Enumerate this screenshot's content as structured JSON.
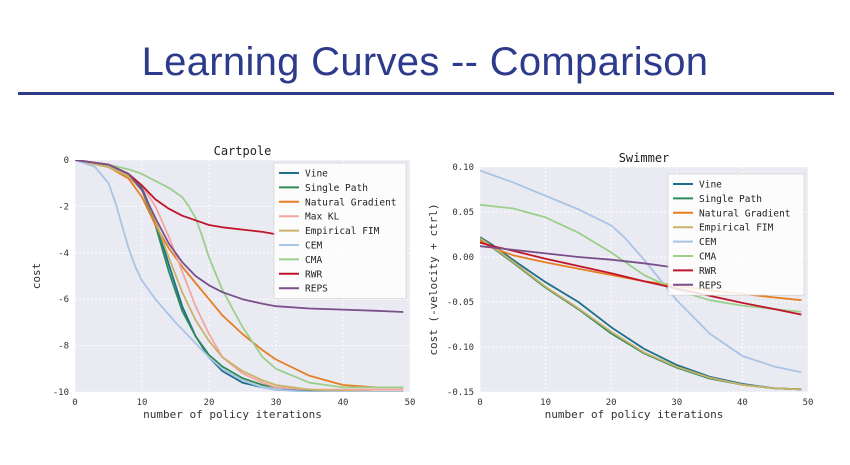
{
  "slide": {
    "title": "Learning Curves -- Comparison"
  },
  "chart_data": [
    {
      "type": "line",
      "title": "Cartpole",
      "xlabel": "number of policy iterations",
      "ylabel": "cost",
      "xlim": [
        0,
        50
      ],
      "ylim": [
        -10,
        0
      ],
      "xticks": [
        0,
        10,
        20,
        30,
        40,
        50
      ],
      "yticks": [
        0,
        -2,
        -4,
        -6,
        -8,
        -10
      ],
      "grid": true,
      "legend": "top-right",
      "series": [
        {
          "name": "Vine",
          "color": "#1f6f8b",
          "x": [
            0,
            5,
            8,
            10,
            12,
            14,
            16,
            18,
            20,
            22,
            25,
            28,
            30,
            35,
            40,
            45,
            49
          ],
          "y": [
            0,
            -0.2,
            -0.6,
            -1.2,
            -2.6,
            -4.5,
            -6.3,
            -7.6,
            -8.5,
            -9.1,
            -9.6,
            -9.8,
            -9.9,
            -9.95,
            -10,
            -10,
            -10
          ]
        },
        {
          "name": "Single Path",
          "color": "#2e8b57",
          "x": [
            0,
            5,
            8,
            10,
            12,
            14,
            16,
            18,
            20,
            22,
            25,
            28,
            30,
            35,
            40,
            45,
            49
          ],
          "y": [
            0,
            -0.3,
            -0.7,
            -1.3,
            -2.8,
            -4.8,
            -6.5,
            -7.6,
            -8.4,
            -8.9,
            -9.4,
            -9.7,
            -9.8,
            -9.9,
            -9.95,
            -10,
            -10
          ]
        },
        {
          "name": "Natural Gradient",
          "color": "#e67e22",
          "x": [
            0,
            5,
            8,
            10,
            12,
            14,
            16,
            18,
            20,
            22,
            25,
            28,
            30,
            35,
            40,
            45,
            49
          ],
          "y": [
            0,
            -0.3,
            -0.8,
            -1.6,
            -2.8,
            -3.8,
            -4.6,
            -5.3,
            -6.0,
            -6.7,
            -7.5,
            -8.2,
            -8.6,
            -9.3,
            -9.7,
            -9.8,
            -9.8
          ]
        },
        {
          "name": "Max KL",
          "color": "#f4a6a0",
          "x": [
            0,
            5,
            8,
            10,
            12,
            14,
            16,
            18,
            20,
            22,
            25,
            28,
            30,
            35,
            40,
            45,
            49
          ],
          "y": [
            0,
            -0.2,
            -0.6,
            -1.1,
            -2.0,
            -3.3,
            -4.8,
            -6.3,
            -7.5,
            -8.5,
            -9.2,
            -9.6,
            -9.8,
            -9.9,
            -9.9,
            -9.9,
            -9.9
          ]
        },
        {
          "name": "Empirical FIM",
          "color": "#c9b36a",
          "x": [
            0,
            5,
            8,
            10,
            12,
            14,
            16,
            18,
            20,
            22,
            25,
            28,
            30,
            35,
            40,
            45,
            49
          ],
          "y": [
            0,
            -0.3,
            -0.7,
            -1.3,
            -2.6,
            -4.2,
            -5.7,
            -6.9,
            -7.8,
            -8.5,
            -9.1,
            -9.5,
            -9.7,
            -9.9,
            -9.95,
            -10,
            -10
          ]
        },
        {
          "name": "CEM",
          "color": "#a9c4e4",
          "x": [
            0,
            3,
            5,
            6,
            7,
            8,
            9,
            10,
            12,
            15,
            18,
            20,
            22,
            25,
            28,
            30,
            35,
            40,
            45,
            49
          ],
          "y": [
            0,
            -0.3,
            -1.0,
            -1.8,
            -2.8,
            -3.8,
            -4.6,
            -5.2,
            -6.0,
            -7.0,
            -7.9,
            -8.5,
            -9.0,
            -9.5,
            -9.8,
            -9.9,
            -10,
            -10,
            -10,
            -10
          ]
        },
        {
          "name": "CMA",
          "color": "#9ccf8c",
          "x": [
            0,
            5,
            8,
            10,
            12,
            14,
            16,
            17,
            18,
            19,
            20,
            22,
            25,
            28,
            30,
            35,
            40,
            45,
            49
          ],
          "y": [
            0,
            -0.2,
            -0.4,
            -0.6,
            -0.9,
            -1.2,
            -1.6,
            -2.0,
            -2.5,
            -3.3,
            -4.2,
            -5.6,
            -7.2,
            -8.5,
            -9.0,
            -9.6,
            -9.8,
            -9.8,
            -9.8
          ]
        },
        {
          "name": "RWR",
          "color": "#c0142a",
          "x": [
            0,
            5,
            8,
            10,
            12,
            14,
            16,
            18,
            20,
            22,
            25,
            28,
            30
          ],
          "y": [
            0,
            -0.2,
            -0.6,
            -1.1,
            -1.7,
            -2.1,
            -2.4,
            -2.6,
            -2.8,
            -2.9,
            -3.0,
            -3.1,
            -3.2
          ]
        },
        {
          "name": "REPS",
          "color": "#7a4f8a",
          "x": [
            0,
            5,
            8,
            10,
            12,
            14,
            16,
            18,
            20,
            22,
            25,
            28,
            30,
            35,
            40,
            45,
            49
          ],
          "y": [
            0,
            -0.2,
            -0.6,
            -1.3,
            -2.5,
            -3.6,
            -4.4,
            -5.0,
            -5.4,
            -5.7,
            -6.0,
            -6.2,
            -6.3,
            -6.4,
            -6.45,
            -6.5,
            -6.55
          ]
        }
      ]
    },
    {
      "type": "line",
      "title": "Swimmer",
      "xlabel": "number of policy iterations",
      "ylabel": "cost (-velocity + ctrl)",
      "xlim": [
        0,
        50
      ],
      "ylim": [
        -0.15,
        0.1
      ],
      "xticks": [
        0,
        10,
        20,
        30,
        40,
        50
      ],
      "yticks": [
        0.1,
        0.05,
        0.0,
        -0.05,
        -0.1,
        -0.15
      ],
      "ytick_labels": [
        "0.10",
        "0.05",
        "0.00",
        "-0.05",
        "-0.10",
        "-0.15"
      ],
      "grid": true,
      "legend": "center-left",
      "series": [
        {
          "name": "Vine",
          "color": "#1f6f8b",
          "x": [
            0,
            2,
            5,
            10,
            15,
            20,
            25,
            30,
            35,
            40,
            45,
            49
          ],
          "y": [
            0.022,
            0.013,
            -0.003,
            -0.028,
            -0.05,
            -0.078,
            -0.102,
            -0.12,
            -0.133,
            -0.141,
            -0.146,
            -0.147
          ]
        },
        {
          "name": "Single Path",
          "color": "#2e8b57",
          "x": [
            0,
            2,
            5,
            10,
            15,
            20,
            25,
            30,
            35,
            40,
            45,
            49
          ],
          "y": [
            0.02,
            0.01,
            -0.006,
            -0.034,
            -0.058,
            -0.085,
            -0.107,
            -0.123,
            -0.135,
            -0.142,
            -0.146,
            -0.147
          ]
        },
        {
          "name": "Natural Gradient",
          "color": "#e67e22",
          "x": [
            0,
            2,
            5,
            10,
            15,
            20,
            25,
            30,
            35,
            40,
            45,
            49
          ],
          "y": [
            0.018,
            0.01,
            0.002,
            -0.006,
            -0.013,
            -0.02,
            -0.027,
            -0.032,
            -0.037,
            -0.041,
            -0.045,
            -0.048
          ]
        },
        {
          "name": "Empirical FIM",
          "color": "#c9b36a",
          "x": [
            0,
            2,
            5,
            10,
            15,
            20,
            25,
            30,
            35,
            40,
            45,
            49
          ],
          "y": [
            0.021,
            0.011,
            -0.005,
            -0.033,
            -0.057,
            -0.083,
            -0.106,
            -0.122,
            -0.134,
            -0.142,
            -0.146,
            -0.147
          ]
        },
        {
          "name": "CEM",
          "color": "#a9c4e4",
          "x": [
            0,
            5,
            10,
            15,
            20,
            22,
            25,
            28,
            30,
            35,
            40,
            45,
            49
          ],
          "y": [
            0.096,
            0.083,
            0.068,
            0.053,
            0.035,
            0.022,
            -0.003,
            -0.03,
            -0.048,
            -0.085,
            -0.11,
            -0.122,
            -0.128
          ]
        },
        {
          "name": "CMA",
          "color": "#9ccf8c",
          "x": [
            0,
            5,
            10,
            15,
            20,
            25,
            30,
            35,
            40,
            45,
            49
          ],
          "y": [
            0.058,
            0.054,
            0.044,
            0.027,
            0.005,
            -0.02,
            -0.037,
            -0.048,
            -0.054,
            -0.058,
            -0.061
          ]
        },
        {
          "name": "RWR",
          "color": "#c0142a",
          "x": [
            0,
            2,
            5,
            10,
            15,
            20,
            25,
            30,
            35,
            40,
            45,
            49
          ],
          "y": [
            0.016,
            0.012,
            0.007,
            -0.002,
            -0.01,
            -0.018,
            -0.027,
            -0.035,
            -0.043,
            -0.051,
            -0.058,
            -0.064
          ]
        },
        {
          "name": "REPS",
          "color": "#7a4f8a",
          "x": [
            0,
            5,
            10,
            15,
            20,
            25,
            29
          ],
          "y": [
            0.012,
            0.008,
            0.004,
            0.0,
            -0.003,
            -0.007,
            -0.011
          ]
        }
      ]
    }
  ]
}
